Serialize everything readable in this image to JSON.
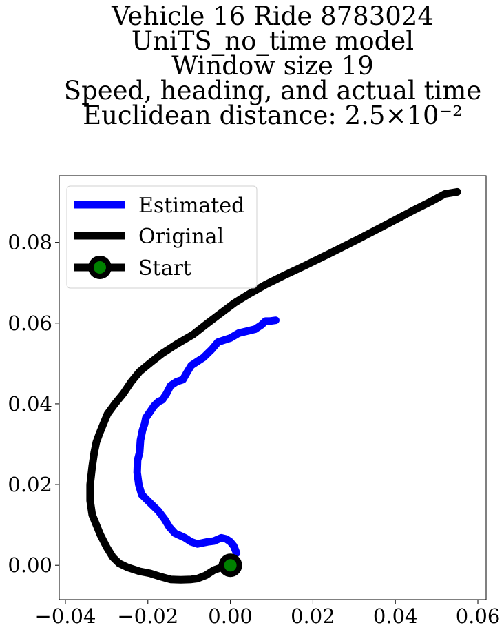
{
  "chart_data": {
    "type": "line",
    "title_lines": [
      "Vehicle 16 Ride 8783024",
      "UniTS_no_time model",
      "Window size 19",
      "Speed, heading, and actual time",
      "Euclidean distance: 2.5×10⁻²"
    ],
    "xlabel": "",
    "ylabel": "",
    "xlim": [
      -0.0415,
      0.062
    ],
    "ylim": [
      -0.0085,
      0.0965
    ],
    "xticks": [
      -0.04,
      -0.02,
      0.0,
      0.02,
      0.04,
      0.06
    ],
    "xtick_labels": [
      "−0.04",
      "−0.02",
      "0.00",
      "0.02",
      "0.04",
      "0.06"
    ],
    "yticks": [
      0.0,
      0.02,
      0.04,
      0.06,
      0.08
    ],
    "ytick_labels": [
      "0.00",
      "0.02",
      "0.04",
      "0.06",
      "0.08"
    ],
    "grid": false,
    "legend_position": "top-left",
    "series": [
      {
        "name": "Estimated",
        "color": "#0000ff",
        "x": [
          0.0015,
          0.0008,
          0.0,
          -0.001,
          -0.0022,
          -0.004,
          -0.0055,
          -0.007,
          -0.008,
          -0.0095,
          -0.011,
          -0.0125,
          -0.0135,
          -0.0148,
          -0.016,
          -0.0175,
          -0.019,
          -0.0205,
          -0.0215,
          -0.0222,
          -0.0226,
          -0.0225,
          -0.022,
          -0.0218,
          -0.0213,
          -0.0208,
          -0.0205,
          -0.0195,
          -0.0185,
          -0.0175,
          -0.0165,
          -0.0155,
          -0.0145,
          -0.013,
          -0.0115,
          -0.0105,
          -0.0095,
          -0.008,
          -0.0065,
          -0.0055,
          -0.0045,
          -0.003,
          -0.0015,
          0.0,
          0.002,
          0.004,
          0.006,
          0.0075,
          0.0085,
          0.0095,
          0.011
        ],
        "y": [
          0.003,
          0.0048,
          0.0058,
          0.0065,
          0.0068,
          0.006,
          0.0058,
          0.0055,
          0.0053,
          0.0058,
          0.0068,
          0.0075,
          0.008,
          0.0095,
          0.0115,
          0.0135,
          0.015,
          0.0165,
          0.0175,
          0.02,
          0.023,
          0.026,
          0.028,
          0.031,
          0.0335,
          0.035,
          0.0365,
          0.038,
          0.0395,
          0.0405,
          0.041,
          0.0425,
          0.0445,
          0.0455,
          0.046,
          0.0478,
          0.0495,
          0.0505,
          0.0515,
          0.0525,
          0.0535,
          0.0553,
          0.0558,
          0.0563,
          0.0575,
          0.058,
          0.0585,
          0.0595,
          0.0605,
          0.0605,
          0.0607
        ]
      },
      {
        "name": "Original",
        "color": "#000000",
        "x": [
          0.0,
          -0.002,
          -0.004,
          -0.006,
          -0.008,
          -0.0095,
          -0.012,
          -0.0145,
          -0.017,
          -0.0195,
          -0.022,
          -0.025,
          -0.027,
          -0.0285,
          -0.03,
          -0.0315,
          -0.0325,
          -0.0335,
          -0.034,
          -0.034,
          -0.0335,
          -0.033,
          -0.0325,
          -0.0318,
          -0.031,
          -0.0298,
          -0.028,
          -0.026,
          -0.024,
          -0.022,
          -0.019,
          -0.0165,
          -0.013,
          -0.009,
          -0.0055,
          -0.002,
          0.001,
          0.0045,
          0.0085,
          0.013,
          0.018,
          0.024,
          0.031,
          0.038,
          0.0445,
          0.049,
          0.052,
          0.055
        ],
        "y": [
          0.0,
          -0.0005,
          -0.0012,
          -0.0025,
          -0.0033,
          -0.0035,
          -0.0036,
          -0.0035,
          -0.0028,
          -0.002,
          -0.0015,
          -0.0005,
          0.0005,
          0.002,
          0.0045,
          0.0075,
          0.01,
          0.0125,
          0.016,
          0.02,
          0.0245,
          0.028,
          0.0305,
          0.0325,
          0.0345,
          0.0375,
          0.04,
          0.0425,
          0.0455,
          0.048,
          0.0505,
          0.0525,
          0.0548,
          0.0572,
          0.06,
          0.0627,
          0.065,
          0.0672,
          0.0695,
          0.0718,
          0.0742,
          0.0772,
          0.0808,
          0.0845,
          0.088,
          0.0903,
          0.092,
          0.0925
        ]
      }
    ],
    "start_marker": {
      "name": "Start",
      "x": 0.0,
      "y": 0.0,
      "edge_color": "#000000",
      "face_color": "#008000"
    }
  }
}
